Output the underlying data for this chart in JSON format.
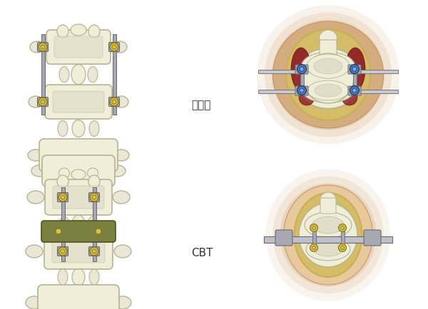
{
  "bg_color": "#ffffff",
  "label_jikouhou": "従来法",
  "label_cbt": "CBT",
  "label_fontsize": 11,
  "bone_color": "#eae7d6",
  "bone_color2": "#f0edd8",
  "bone_outline": "#b8b490",
  "bone_inner": "#dddaba",
  "bone_hatch": "#e0ddc8",
  "screw_color": "#a8a8b2",
  "screw_outline": "#686870",
  "screw_head_color": "#d4c050",
  "screw_head_outline": "#8a7010",
  "rod_color": "#b8b8c0",
  "rod_outline": "#686870",
  "plate_color": "#7a8040",
  "plate_outline": "#505520",
  "dark_red": "#8b1a20",
  "blue_screw": "#4878b8",
  "blue_screw_in": "#80aadd",
  "skin_color_outer": "#d4a878",
  "skin_color_mid": "#e8c898",
  "skin_color_inner": "#f0dbb8",
  "skin_outline": "#c09060",
  "wound_yellow": "#c8b050",
  "wound_fill": "#d4bc68"
}
